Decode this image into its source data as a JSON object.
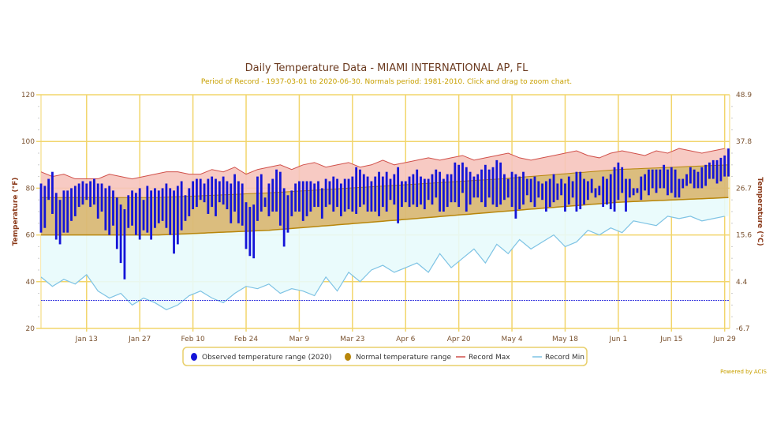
{
  "chart_data": {
    "type": "bar",
    "title": "Daily Temperature Data - MIAMI INTERNATIONAL AP, FL",
    "subtitle": "Period of Record - 1937-03-01 to 2020-06-30. Normals period: 1981-2010. Click and drag to zoom chart.",
    "ylabel": "Temperature (°F)",
    "ylabel_right": "Temperature (°C)",
    "ylim": [
      20,
      120
    ],
    "yticks": [
      "20",
      "40",
      "60",
      "80",
      "100",
      "120"
    ],
    "yticks_right": [
      "-6.7",
      "4.4",
      "15.6",
      "26.7",
      "37.8",
      "48.9"
    ],
    "x_start": "Jan 1",
    "days": 182,
    "xticks": [
      {
        "day": 12,
        "label": "Jan 13"
      },
      {
        "day": 26,
        "label": "Jan 27"
      },
      {
        "day": 40,
        "label": "Feb 10"
      },
      {
        "day": 54,
        "label": "Feb 24"
      },
      {
        "day": 68,
        "label": "Mar 9"
      },
      {
        "day": 82,
        "label": "Mar 23"
      },
      {
        "day": 96,
        "label": "Apr 6"
      },
      {
        "day": 110,
        "label": "Apr 20"
      },
      {
        "day": 124,
        "label": "May 4"
      },
      {
        "day": 138,
        "label": "May 18"
      },
      {
        "day": 152,
        "label": "Jun 1"
      },
      {
        "day": 166,
        "label": "Jun 15"
      },
      {
        "day": 180,
        "label": "Jun 29"
      }
    ],
    "freeze_line": 32,
    "observed_high": [
      82,
      81,
      84,
      87,
      78,
      75,
      79,
      79,
      80,
      81,
      82,
      83,
      82,
      83,
      84,
      82,
      82,
      80,
      81,
      79,
      76,
      73,
      71,
      77,
      79,
      78,
      80,
      75,
      81,
      79,
      80,
      79,
      80,
      82,
      80,
      79,
      81,
      83,
      77,
      80,
      83,
      84,
      84,
      82,
      84,
      85,
      84,
      83,
      85,
      83,
      82,
      86,
      83,
      82,
      74,
      72,
      73,
      85,
      86,
      76,
      82,
      84,
      88,
      87,
      80,
      77,
      79,
      82,
      83,
      83,
      83,
      83,
      82,
      83,
      80,
      84,
      83,
      85,
      84,
      82,
      84,
      84,
      85,
      89,
      88,
      86,
      85,
      83,
      85,
      87,
      85,
      87,
      84,
      86,
      89,
      83,
      83,
      85,
      86,
      88,
      85,
      84,
      84,
      86,
      88,
      87,
      84,
      86,
      86,
      91,
      90,
      91,
      89,
      87,
      85,
      86,
      88,
      90,
      88,
      89,
      92,
      91,
      86,
      84,
      87,
      86,
      85,
      87,
      84,
      84,
      85,
      83,
      82,
      83,
      84,
      86,
      82,
      84,
      82,
      85,
      83,
      87,
      87,
      84,
      83,
      84,
      80,
      81,
      85,
      84,
      86,
      89,
      91,
      89,
      84,
      84,
      80,
      80,
      85,
      86,
      88,
      88,
      88,
      88,
      90,
      88,
      89,
      88,
      84,
      84,
      86,
      89,
      88,
      87,
      89,
      90,
      91,
      92,
      92,
      93,
      94,
      97
    ],
    "observed_low": [
      61,
      63,
      75,
      69,
      58,
      56,
      61,
      61,
      66,
      68,
      72,
      73,
      75,
      72,
      73,
      67,
      70,
      62,
      60,
      64,
      54,
      48,
      41,
      63,
      64,
      60,
      58,
      62,
      61,
      58,
      63,
      65,
      66,
      63,
      60,
      52,
      56,
      62,
      66,
      68,
      71,
      72,
      75,
      74,
      69,
      72,
      68,
      74,
      73,
      71,
      65,
      70,
      65,
      64,
      54,
      51,
      50,
      66,
      70,
      72,
      68,
      70,
      70,
      64,
      55,
      61,
      68,
      70,
      70,
      66,
      68,
      70,
      72,
      72,
      67,
      72,
      73,
      70,
      72,
      68,
      70,
      71,
      70,
      69,
      72,
      73,
      70,
      70,
      70,
      68,
      72,
      70,
      75,
      73,
      65,
      72,
      74,
      72,
      73,
      72,
      73,
      71,
      75,
      73,
      76,
      70,
      70,
      72,
      74,
      74,
      72,
      78,
      70,
      73,
      76,
      76,
      74,
      72,
      76,
      73,
      72,
      73,
      75,
      76,
      72,
      67,
      71,
      73,
      77,
      74,
      72,
      76,
      75,
      70,
      72,
      74,
      75,
      77,
      70,
      73,
      76,
      70,
      71,
      73,
      75,
      78,
      76,
      77,
      72,
      73,
      71,
      70,
      75,
      78,
      70,
      76,
      77,
      78,
      75,
      79,
      77,
      80,
      78,
      80,
      80,
      77,
      78,
      76,
      76,
      80,
      81,
      82,
      80,
      80,
      80,
      81,
      84,
      84,
      82,
      83,
      85,
      85
    ],
    "record_step_days": 3,
    "record_max": [
      87,
      85,
      86,
      84,
      84,
      84,
      86,
      85,
      84,
      85,
      86,
      87,
      87,
      86,
      86,
      88,
      87,
      89,
      86,
      88,
      89,
      90,
      88,
      90,
      91,
      89,
      90,
      91,
      89,
      90,
      92,
      90,
      91,
      92,
      93,
      92,
      93,
      94,
      92,
      93,
      94,
      95,
      93,
      92,
      93,
      94,
      95,
      96,
      94,
      93,
      95,
      96,
      95,
      94,
      96,
      95,
      97,
      96,
      95,
      96,
      97
    ],
    "record_min": [
      42,
      38,
      41,
      39,
      43,
      36,
      33,
      35,
      30,
      33,
      31,
      28,
      30,
      34,
      36,
      33,
      31,
      35,
      38,
      37,
      39,
      35,
      37,
      36,
      34,
      42,
      36,
      44,
      40,
      45,
      47,
      44,
      46,
      48,
      44,
      52,
      46,
      50,
      54,
      48,
      56,
      52,
      58,
      54,
      57,
      60,
      55,
      57,
      62,
      60,
      63,
      61,
      66,
      65,
      64,
      68,
      67,
      68,
      66,
      67,
      68
    ],
    "normal_days": [
      0,
      31,
      60,
      91,
      121,
      152,
      181
    ],
    "normal_high": [
      76,
      76,
      78,
      81,
      84,
      88,
      90
    ],
    "normal_low": [
      60,
      60,
      62,
      66,
      70,
      74,
      76
    ],
    "legend": {
      "observed": "Observed temperature range (2020)",
      "normal": "Normal temperature range",
      "record_max": "Record Max",
      "record_min": "Record Min",
      "placement": "bottom-center"
    },
    "colors": {
      "observed": "#1414d8",
      "normal": "#b8860b",
      "normal_fill": "#d9b977",
      "record_max": "#d0504a",
      "record_max_fill": "#f6c4bd",
      "record_min": "#7ec3e4",
      "record_min_fill": "#e8fbfc",
      "grid": "#f2d56b"
    }
  },
  "footer": {
    "powered_by": "Powered by ACIS"
  }
}
